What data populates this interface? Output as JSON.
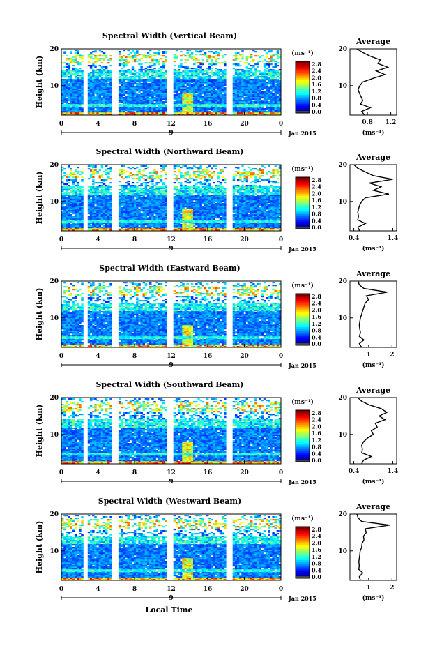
{
  "chart_data": [
    {
      "type": "heatmap",
      "title": "Spectral Width (Vertical Beam)",
      "ylabel": "Height (km)",
      "ylim": [
        2,
        20
      ],
      "yticks": [
        "20",
        "10"
      ],
      "xticks": [
        "0",
        "4",
        "8",
        "12",
        "16",
        "20",
        "0"
      ],
      "xlim": [
        0,
        24
      ],
      "date_marker": "9",
      "date_label": "Jan 2015",
      "colorbar": {
        "unit": "(ms⁻¹)",
        "ticks": [
          "2.8",
          "2.4",
          "2.0",
          "1.6",
          "1.2",
          "0.8",
          "0.4",
          "0.0"
        ],
        "range": [
          0,
          2.8
        ]
      },
      "gaps_hours": [
        [
          2.3,
          2.9
        ],
        [
          5.6,
          6.2
        ],
        [
          11.6,
          12.3
        ],
        [
          18.0,
          18.7
        ]
      ],
      "average": {
        "title": "Average",
        "xlabel": "(ms⁻¹)",
        "xticks": [
          "0.8",
          "1.2"
        ],
        "xlim": [
          0.5,
          1.3
        ],
        "yticks": [
          "20",
          "10"
        ],
        "height": [
          2,
          3,
          4,
          5,
          6,
          7,
          8,
          9,
          10,
          11,
          12,
          13,
          14,
          15,
          16,
          17,
          18,
          19,
          20
        ],
        "values": [
          0.75,
          0.7,
          0.85,
          0.68,
          0.72,
          0.69,
          0.66,
          0.64,
          0.67,
          0.72,
          0.9,
          1.1,
          0.95,
          1.15,
          0.98,
          1.02,
          0.85,
          0.72,
          0.62
        ]
      }
    },
    {
      "type": "heatmap",
      "title": "Spectral Width (Northward Beam)",
      "ylabel": "Height (km)",
      "ylim": [
        2,
        20
      ],
      "yticks": [
        "20",
        "10"
      ],
      "xticks": [
        "0",
        "4",
        "8",
        "12",
        "16",
        "20",
        "0"
      ],
      "xlim": [
        0,
        24
      ],
      "date_marker": "9",
      "date_label": "Jan 2015",
      "colorbar": {
        "unit": "(ms⁻¹)",
        "ticks": [
          "2.8",
          "2.4",
          "2.0",
          "1.6",
          "1.2",
          "0.8",
          "0.4",
          "0.0"
        ],
        "range": [
          0,
          2.8
        ]
      },
      "gaps_hours": [
        [
          2.3,
          2.9
        ],
        [
          5.6,
          6.2
        ],
        [
          11.6,
          12.3
        ],
        [
          18.0,
          18.7
        ]
      ],
      "average": {
        "title": "Average",
        "xlabel": "(ms⁻¹)",
        "xticks": [
          "0.4",
          "1.4"
        ],
        "xlim": [
          0.3,
          1.5
        ],
        "yticks": [
          "20",
          "10"
        ],
        "height": [
          2,
          3,
          4,
          5,
          6,
          7,
          8,
          9,
          10,
          11,
          12,
          13,
          14,
          15,
          16,
          17,
          18,
          19,
          20
        ],
        "values": [
          0.55,
          0.5,
          0.7,
          0.5,
          0.52,
          0.5,
          0.52,
          0.55,
          0.6,
          0.7,
          1.3,
          0.9,
          1.1,
          0.8,
          1.4,
          0.9,
          0.7,
          0.5,
          0.4
        ]
      }
    },
    {
      "type": "heatmap",
      "title": "Spectral Width (Eastward Beam)",
      "ylabel": "Height (km)",
      "ylim": [
        2,
        20
      ],
      "yticks": [
        "20",
        "10"
      ],
      "xticks": [
        "0",
        "4",
        "8",
        "12",
        "16",
        "20",
        "0"
      ],
      "xlim": [
        0,
        24
      ],
      "date_marker": "9",
      "date_label": "Jan 2015",
      "colorbar": {
        "unit": "(ms⁻¹)",
        "ticks": [
          "2.8",
          "2.4",
          "2.0",
          "1.6",
          "1.2",
          "0.8",
          "0.4",
          "0.0"
        ],
        "range": [
          0,
          2.8
        ]
      },
      "gaps_hours": [
        [
          2.3,
          2.9
        ],
        [
          5.6,
          6.2
        ],
        [
          11.6,
          12.3
        ],
        [
          18.0,
          18.7
        ]
      ],
      "average": {
        "title": "Average",
        "xlabel": "(ms⁻¹)",
        "xticks": [
          "1",
          "2"
        ],
        "xlim": [
          0.2,
          2.2
        ],
        "yticks": [
          "20",
          "10"
        ],
        "height": [
          2,
          3,
          4,
          5,
          6,
          7,
          8,
          9,
          10,
          11,
          12,
          13,
          14,
          15,
          16,
          17,
          18,
          19,
          20
        ],
        "values": [
          0.7,
          0.6,
          0.8,
          0.6,
          0.65,
          0.62,
          0.6,
          0.62,
          0.65,
          0.7,
          0.75,
          0.8,
          0.85,
          1.0,
          0.9,
          1.8,
          0.8,
          0.6,
          0.55
        ]
      }
    },
    {
      "type": "heatmap",
      "title": "Spectral Width (Southward Beam)",
      "ylabel": "Height (km)",
      "ylim": [
        2,
        20
      ],
      "yticks": [
        "20",
        "10"
      ],
      "xticks": [
        "0",
        "4",
        "8",
        "12",
        "16",
        "20",
        "0"
      ],
      "xlim": [
        0,
        24
      ],
      "date_marker": "9",
      "date_label": "Jan 2015",
      "colorbar": {
        "unit": "(ms⁻¹)",
        "ticks": [
          "2.8",
          "2.4",
          "2.0",
          "1.6",
          "1.2",
          "0.8",
          "0.4",
          "0.0"
        ],
        "range": [
          0,
          2.8
        ]
      },
      "gaps_hours": [
        [
          2.3,
          2.9
        ],
        [
          5.6,
          6.2
        ],
        [
          11.6,
          12.3
        ],
        [
          18.0,
          18.7
        ]
      ],
      "average": {
        "title": "Average",
        "xlabel": "(ms⁻¹)",
        "xticks": [
          "0.4",
          "1.4"
        ],
        "xlim": [
          0.3,
          1.5
        ],
        "yticks": [
          "20",
          "10"
        ],
        "height": [
          2,
          3,
          4,
          5,
          6,
          7,
          8,
          9,
          10,
          11,
          12,
          13,
          14,
          15,
          16,
          17,
          18,
          19,
          20
        ],
        "values": [
          0.6,
          0.65,
          0.85,
          0.6,
          0.62,
          0.6,
          0.65,
          0.75,
          0.9,
          0.85,
          1.0,
          0.95,
          1.2,
          1.05,
          1.25,
          1.1,
          0.8,
          0.6,
          0.5
        ]
      }
    },
    {
      "type": "heatmap",
      "title": "Spectral Width (Westward Beam)",
      "ylabel": "Height (km)",
      "ylim": [
        2,
        20
      ],
      "yticks": [
        "20",
        "10"
      ],
      "xticks": [
        "0",
        "4",
        "8",
        "12",
        "16",
        "20",
        "0"
      ],
      "xlim": [
        0,
        24
      ],
      "date_marker": "9",
      "date_label": "Jan 2015",
      "colorbar": {
        "unit": "(ms⁻¹)",
        "ticks": [
          "2.8",
          "2.4",
          "2.0",
          "1.6",
          "1.2",
          "0.8",
          "0.4",
          "0.0"
        ],
        "range": [
          0,
          2.8
        ]
      },
      "gaps_hours": [
        [
          2.3,
          2.9
        ],
        [
          5.6,
          6.2
        ],
        [
          11.6,
          12.3
        ],
        [
          18.0,
          18.7
        ]
      ],
      "average": {
        "title": "Average",
        "xlabel": "(ms⁻¹)",
        "xticks": [
          "1",
          "2"
        ],
        "xlim": [
          0.2,
          2.2
        ],
        "yticks": [
          "20",
          "10"
        ],
        "height": [
          2,
          3,
          4,
          5,
          6,
          7,
          8,
          9,
          10,
          11,
          12,
          13,
          14,
          15,
          16,
          17,
          18,
          19,
          20
        ],
        "values": [
          0.65,
          0.6,
          0.75,
          0.58,
          0.6,
          0.58,
          0.6,
          0.62,
          0.64,
          0.7,
          0.72,
          0.8,
          0.78,
          0.9,
          0.85,
          1.9,
          0.7,
          0.55,
          0.5
        ]
      }
    }
  ],
  "xaxis_label": "Local Time"
}
